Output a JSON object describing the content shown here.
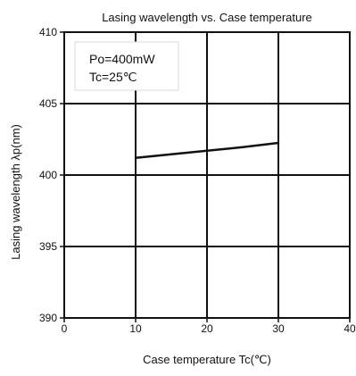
{
  "chart_data": {
    "type": "line",
    "title": "Lasing wavelength  vs.  Case temperature",
    "xlabel": "Case temperature   Tc(℃)",
    "ylabel": "Lasing wavelength   λp(nm)",
    "xlim": [
      0,
      40
    ],
    "ylim": [
      390,
      410
    ],
    "x_ticks": [
      0,
      10,
      20,
      30,
      40
    ],
    "y_ticks": [
      390,
      395,
      400,
      405,
      410
    ],
    "grid": true,
    "series": [
      {
        "x": [
          10,
          15,
          20,
          25,
          30
        ],
        "y": [
          401.2,
          401.45,
          401.7,
          401.95,
          402.25
        ]
      }
    ],
    "annotations": [
      "Po=400mW",
      "Tc=25℃"
    ],
    "colors": {
      "line": "#111111",
      "grid": "#111111",
      "background": "#ffffff"
    }
  }
}
